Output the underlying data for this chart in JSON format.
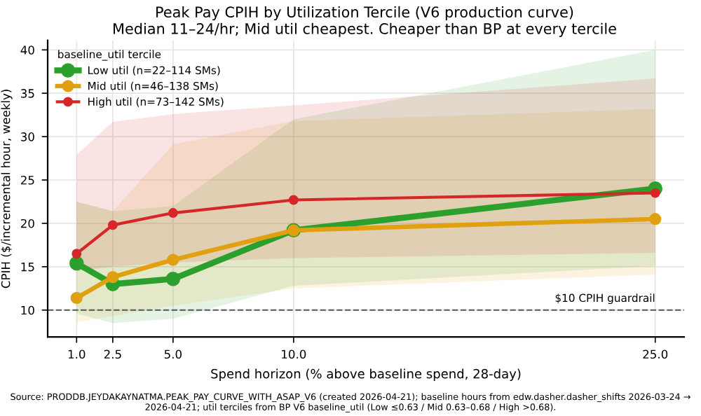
{
  "chart_data": {
    "type": "line",
    "title": "Peak Pay CPIH by Utilization Tercile (V6 production curve)",
    "subtitle": "Median 11–24/hr; Mid util cheapest. Cheaper than BP at every tercile",
    "xlabel": "Spend horizon (% above baseline spend, 28-day)",
    "ylabel": "CPIH ($/incremental hour, weekly)",
    "legend_title": "baseline_util tercile",
    "x": [
      1.0,
      2.5,
      5.0,
      10.0,
      25.0
    ],
    "series": [
      {
        "name": "Low util (n=22–114 SMs)",
        "color": "#2ca02c",
        "values": [
          15.4,
          13.0,
          13.6,
          19.2,
          24.0
        ],
        "lower": [
          9.6,
          8.5,
          9.0,
          12.8,
          15.1
        ],
        "upper": [
          22.5,
          21.4,
          22.0,
          32.0,
          40.0
        ]
      },
      {
        "name": "Mid util (n=46–138 SMs)",
        "color": "#e0a010",
        "values": [
          11.4,
          13.8,
          15.8,
          19.2,
          20.5
        ],
        "lower": [
          8.6,
          9.3,
          10.5,
          12.5,
          14.1
        ],
        "upper": [
          22.5,
          21.4,
          29.1,
          31.8,
          33.2
        ]
      },
      {
        "name": "High util (n=73–142 SMs)",
        "color": "#d62728",
        "values": [
          16.5,
          19.8,
          21.2,
          22.7,
          23.5
        ],
        "lower": [
          14.5,
          15.0,
          15.5,
          16.0,
          16.6
        ],
        "upper": [
          27.9,
          31.7,
          32.6,
          33.6,
          36.7
        ]
      }
    ],
    "xlim": [
      -0.2,
      26.2
    ],
    "ylim": [
      6.9,
      41.1
    ],
    "xticks": [
      {
        "value": 1.0,
        "label": "1.0"
      },
      {
        "value": 2.5,
        "label": "2.5"
      },
      {
        "value": 5.0,
        "label": "5.0"
      },
      {
        "value": 10.0,
        "label": "10.0"
      },
      {
        "value": 25.0,
        "label": "25.0"
      }
    ],
    "yticks": [
      10,
      15,
      20,
      25,
      30,
      35,
      40
    ],
    "ref_lines": [
      {
        "axis": "y",
        "value": 10,
        "label": "$10 CPIH guardrail",
        "color": "#555555",
        "line_style": "dashed"
      }
    ],
    "grid": true,
    "legend": "top left",
    "marker": "circle",
    "line_style": "solid",
    "annotations": [
      "Source: PRODDB.JEYDAKAYNATMA.PEAK_PAY_CURVE_WITH_ASAP_V6 (created 2026-04-21); baseline hours from edw.dasher.dasher_shifts 2026-03-24 → 2026-04-21; util terciles from BP V6 baseline_util (Low ≤0.63 / Mid 0.63–0.68 / High >0.68)."
    ]
  }
}
